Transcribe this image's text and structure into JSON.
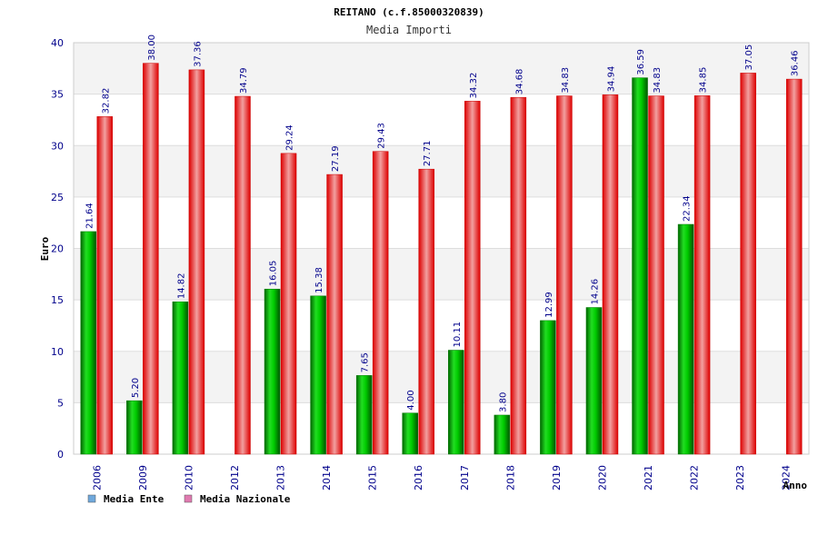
{
  "chart_data": {
    "type": "bar",
    "title": "REITANO (c.f.85000320839)",
    "subtitle": "Media Importi",
    "ylabel": "Euro",
    "xlabel": "Anno",
    "ylim": [
      0,
      40
    ],
    "yticks": [
      0,
      5,
      10,
      15,
      20,
      25,
      30,
      35,
      40
    ],
    "grid": true,
    "legend_position": "bottom-left",
    "categories": [
      "2006",
      "2009",
      "2010",
      "2012",
      "2013",
      "2014",
      "2015",
      "2016",
      "2017",
      "2018",
      "2019",
      "2020",
      "2021",
      "2022",
      "2023",
      "2024"
    ],
    "series": [
      {
        "name": "Media Ente",
        "color": "#00bb00",
        "legend_color": "#6fa8dc",
        "values": [
          21.64,
          5.2,
          14.82,
          null,
          16.05,
          15.38,
          7.65,
          4.0,
          10.11,
          3.8,
          12.99,
          14.26,
          36.59,
          22.34,
          null,
          null
        ],
        "labels": [
          "21.64",
          "5.20",
          "14.82",
          "",
          "16.05",
          "15.38",
          "7.65",
          "4.00",
          "10.11",
          "3.80",
          "12.99",
          "14.26",
          "36.59",
          "22.34",
          "",
          ""
        ]
      },
      {
        "name": "Media Nazionale",
        "color": "#ee1111",
        "legend_color": "#e07ab0",
        "values": [
          32.82,
          38.0,
          37.36,
          34.79,
          29.24,
          27.19,
          29.43,
          27.71,
          34.32,
          34.68,
          34.83,
          34.94,
          34.83,
          34.85,
          37.05,
          36.46
        ],
        "labels": [
          "32.82",
          "38.00",
          "37.36",
          "34.79",
          "29.24",
          "27.19",
          "29.43",
          "27.71",
          "34.32",
          "34.68",
          "34.83",
          "34.94",
          "34.83",
          "34.85",
          "37.05",
          "36.46"
        ]
      }
    ]
  }
}
